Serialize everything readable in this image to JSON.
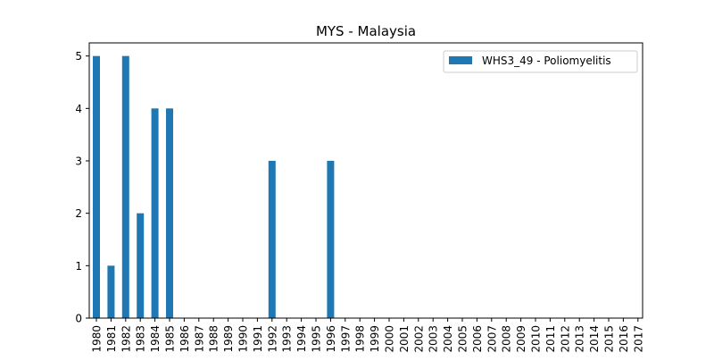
{
  "chart_data": {
    "type": "bar",
    "title": "MYS - Malaysia",
    "xlabel": "",
    "ylabel": "",
    "categories": [
      "1980",
      "1981",
      "1982",
      "1983",
      "1984",
      "1985",
      "1986",
      "1987",
      "1988",
      "1989",
      "1990",
      "1991",
      "1992",
      "1993",
      "1994",
      "1995",
      "1996",
      "1997",
      "1998",
      "1999",
      "2000",
      "2001",
      "2002",
      "2003",
      "2004",
      "2005",
      "2006",
      "2007",
      "2008",
      "2009",
      "2010",
      "2011",
      "2012",
      "2013",
      "2014",
      "2015",
      "2016",
      "2017"
    ],
    "series": [
      {
        "name": "WHS3_49 - Poliomyelitis",
        "color": "#1f77b4",
        "values": [
          5,
          1,
          5,
          2,
          4,
          4,
          0,
          0,
          0,
          0,
          0,
          0,
          3,
          0,
          0,
          0,
          3,
          0,
          0,
          0,
          0,
          0,
          0,
          0,
          0,
          0,
          0,
          0,
          0,
          0,
          0,
          0,
          0,
          0,
          0,
          0,
          0,
          0
        ]
      }
    ],
    "ylim": [
      0,
      5.25
    ],
    "yticks": [
      0,
      1,
      2,
      3,
      4,
      5
    ],
    "legend_position": "top-right",
    "grid": false
  }
}
